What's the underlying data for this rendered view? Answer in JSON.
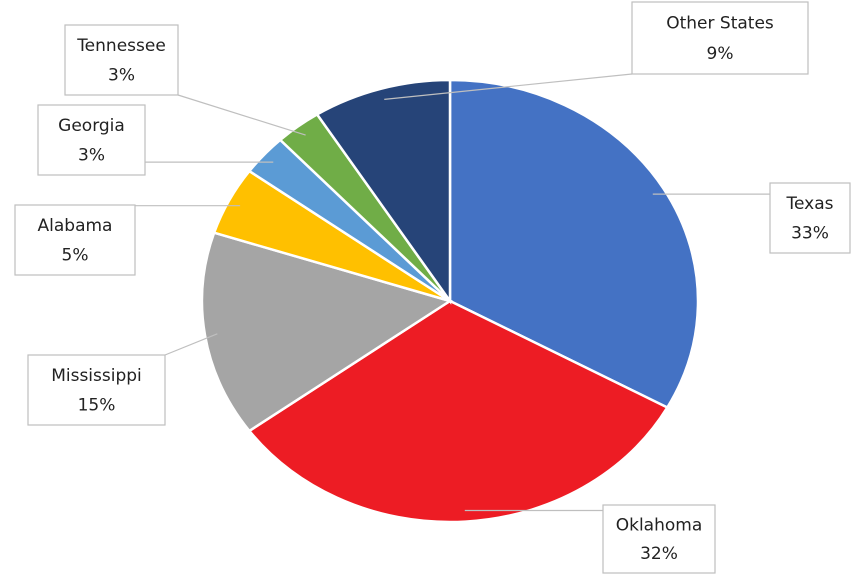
{
  "chart_data": {
    "type": "pie",
    "categories": [
      "Texas",
      "Oklahoma",
      "Mississippi",
      "Alabama",
      "Georgia",
      "Tennessee",
      "Other States"
    ],
    "values": [
      33,
      32,
      15,
      5,
      3,
      3,
      9
    ],
    "value_labels": [
      "33%",
      "32%",
      "15%",
      "5%",
      "3%",
      "3%",
      "9%"
    ],
    "colors": [
      "#4472c4",
      "#ed1c24",
      "#a5a5a5",
      "#ffc000",
      "#5b9bd5",
      "#70ad47",
      "#264478"
    ]
  }
}
